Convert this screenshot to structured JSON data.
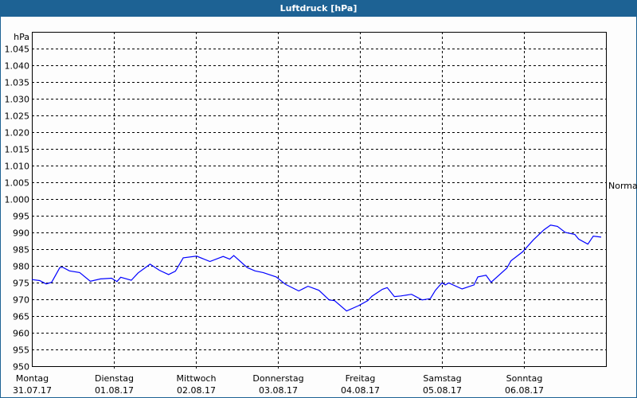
{
  "title": "Luftdruck [hPa]",
  "chart_data": {
    "type": "line",
    "title": "Luftdruck [hPa]",
    "ylabel": "hPa",
    "ylim": [
      950,
      1050
    ],
    "ytick_step": 5,
    "ytick_labels": [
      "950",
      "955",
      "960",
      "965",
      "970",
      "975",
      "980",
      "985",
      "990",
      "995",
      "1.000",
      "1.005",
      "1.010",
      "1.015",
      "1.020",
      "1.025",
      "1.030",
      "1.035",
      "1.040",
      "1.045"
    ],
    "grid": true,
    "x_unit": "hours since Montag 31.07.17 00:00",
    "xlim": [
      0,
      168
    ],
    "xticks": [
      {
        "day": "Montag",
        "date": "31.07.17"
      },
      {
        "day": "Dienstag",
        "date": "01.08.17"
      },
      {
        "day": "Mittwoch",
        "date": "02.08.17"
      },
      {
        "day": "Donnerstag",
        "date": "03.08.17"
      },
      {
        "day": "Freitag",
        "date": "04.08.17"
      },
      {
        "day": "Samstag",
        "date": "05.08.17"
      },
      {
        "day": "Sonntag",
        "date": "06.08.17"
      }
    ],
    "annotation": {
      "label": "Normal",
      "value": 1004
    },
    "line_color": "#0000ff",
    "series": [
      {
        "x": [
          0,
          2.3,
          4.2,
          5.8,
          8.2,
          9,
          11,
          14,
          17.1,
          20.1,
          23.3,
          24.9,
          26,
          29.1,
          31.1,
          34.6,
          37.3,
          40,
          42,
          44.3,
          48.2,
          52.1,
          56,
          57.9,
          59.1,
          63,
          65.3,
          67.7,
          71.5,
          74.2,
          78.1,
          80.8,
          84,
          87,
          88.6,
          92.1,
          95.6,
          98.3,
          99.5,
          102.6,
          104,
          106.1,
          108,
          111.1,
          114.2,
          116.6,
          118.1,
          120,
          121,
          122,
          125.9,
          129.4,
          130.5,
          132.9,
          134.4,
          139,
          140.2,
          143.6,
          146.8,
          149.9,
          151.8,
          153.8,
          156.1,
          158.9,
          160,
          162.7,
          164.3,
          166.6
        ],
        "y": [
          975.9,
          975.6,
          974.6,
          975.1,
          979.5,
          979.6,
          978.5,
          978.0,
          975.4,
          976.1,
          976.3,
          975.3,
          976.6,
          975.7,
          977.9,
          980.5,
          978.7,
          977.4,
          978.4,
          982.4,
          982.9,
          981.3,
          982.8,
          982.0,
          983.1,
          979.5,
          978.5,
          978.0,
          976.7,
          974.5,
          972.5,
          973.9,
          972.7,
          969.8,
          969.6,
          966.5,
          968.1,
          969.6,
          970.9,
          973.0,
          973.5,
          970.8,
          971.0,
          971.5,
          969.8,
          970.2,
          972.7,
          974.9,
          974.3,
          974.9,
          973.1,
          974.3,
          976.7,
          977.2,
          975.1,
          979.3,
          981.5,
          984.2,
          987.8,
          990.8,
          992.2,
          991.8,
          990.0,
          989.4,
          988.0,
          986.5,
          988.9,
          988.6
        ]
      }
    ]
  }
}
